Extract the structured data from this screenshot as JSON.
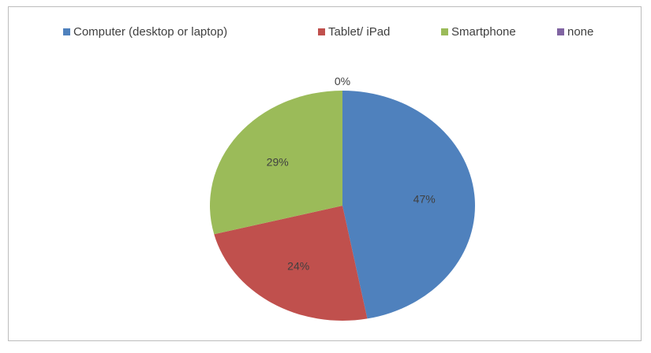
{
  "chart_data": {
    "type": "pie",
    "categories": [
      "Computer (desktop or laptop)",
      "Tablet/ iPad",
      "Smartphone",
      "none"
    ],
    "values": [
      47,
      24,
      29,
      0
    ],
    "data_labels": [
      "47%",
      "24%",
      "29%",
      "0%"
    ],
    "colors": [
      "#4f81bd",
      "#c0504d",
      "#9bbb59",
      "#8064a2"
    ],
    "unit": "%",
    "legend_position": "top"
  }
}
